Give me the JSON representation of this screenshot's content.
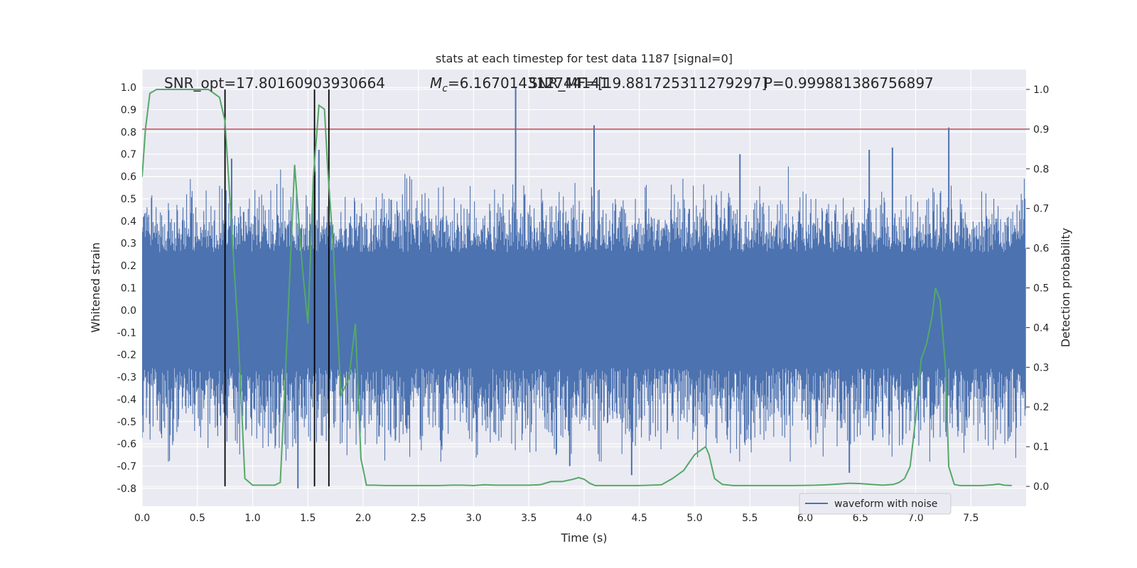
{
  "chart_data": {
    "type": "line",
    "title": "stats at each timestep for test data 1187 [signal=0]",
    "xlabel": "Time (s)",
    "ylabel_left": "Whitened strain",
    "ylabel_right": "Detection probability",
    "xlim": [
      0.0,
      8.0
    ],
    "ylim_left": [
      -0.88,
      1.08
    ],
    "ylim_right": [
      -0.05,
      1.05
    ],
    "xticks": [
      "0.0",
      "0.5",
      "1.0",
      "1.5",
      "2.0",
      "2.5",
      "3.0",
      "3.5",
      "4.0",
      "4.5",
      "5.0",
      "5.5",
      "6.0",
      "6.5",
      "7.0",
      "7.5"
    ],
    "yticks_left": [
      "-0.8",
      "-0.7",
      "-0.6",
      "-0.5",
      "-0.4",
      "-0.3",
      "-0.2",
      "-0.1",
      "0.0",
      "0.1",
      "0.2",
      "0.3",
      "0.4",
      "0.5",
      "0.6",
      "0.7",
      "0.8",
      "0.9",
      "1.0"
    ],
    "yticks_right": [
      "0.0",
      "0.1",
      "0.2",
      "0.3",
      "0.4",
      "0.5",
      "0.6",
      "0.7",
      "0.8",
      "0.9",
      "1.0"
    ],
    "grid": true,
    "legend": {
      "placement": "lower-right",
      "entries": [
        "waveform with noise"
      ]
    },
    "annotations": {
      "snr_opt": "SNR_opt=17.80160903930664",
      "mc_symbol": "M",
      "mc_sub": "c",
      "mc_value": "=6.167014312744141",
      "snr_mf": "SNR_MF=[19.881725311279297]",
      "p_value": "P=0.999881386756897"
    },
    "series": [
      {
        "name": "waveform with noise",
        "axis": "left",
        "color": "#4c72b0",
        "description_spikes": [
          {
            "x": 3.38,
            "y": 1.0
          },
          {
            "x": 4.09,
            "y": 0.83
          },
          {
            "x": 7.3,
            "y": 0.82
          },
          {
            "x": 0.81,
            "y": 0.68
          },
          {
            "x": 1.6,
            "y": 0.72
          },
          {
            "x": 5.41,
            "y": 0.7
          },
          {
            "x": 6.58,
            "y": 0.72
          },
          {
            "x": 6.79,
            "y": 0.73
          },
          {
            "x": 1.41,
            "y": -0.8
          },
          {
            "x": 4.43,
            "y": -0.74
          },
          {
            "x": 3.87,
            "y": -0.7
          },
          {
            "x": 6.4,
            "y": -0.73
          }
        ]
      },
      {
        "name": "",
        "axis": "right",
        "color": "#55a868",
        "x": [
          0.0,
          0.03,
          0.07,
          0.13,
          0.2,
          0.3,
          0.4,
          0.5,
          0.6,
          0.65,
          0.7,
          0.75,
          0.8,
          0.87,
          0.93,
          1.0,
          1.1,
          1.2,
          1.25,
          1.3,
          1.38,
          1.45,
          1.5,
          1.55,
          1.6,
          1.65,
          1.68,
          1.73,
          1.8,
          1.87,
          1.93,
          1.98,
          2.03,
          2.1,
          2.2,
          2.3,
          2.4,
          2.5,
          2.6,
          2.7,
          2.8,
          2.9,
          3.0,
          3.1,
          3.2,
          3.3,
          3.4,
          3.5,
          3.6,
          3.7,
          3.8,
          3.9,
          3.95,
          4.0,
          4.05,
          4.1,
          4.2,
          4.3,
          4.4,
          4.5,
          4.6,
          4.7,
          4.8,
          4.85,
          4.9,
          4.95,
          5.0,
          5.05,
          5.1,
          5.13,
          5.18,
          5.25,
          5.35,
          5.5,
          5.7,
          5.9,
          6.1,
          6.2,
          6.3,
          6.4,
          6.5,
          6.6,
          6.7,
          6.8,
          6.85,
          6.9,
          6.95,
          7.0,
          7.05,
          7.1,
          7.15,
          7.18,
          7.22,
          7.27,
          7.3,
          7.35,
          7.4,
          7.5,
          7.6,
          7.7,
          7.75,
          7.8,
          7.87
        ],
        "y": [
          0.78,
          0.9,
          0.99,
          1.0,
          1.0,
          1.0,
          1.0,
          1.0,
          1.0,
          0.99,
          0.98,
          0.92,
          0.7,
          0.38,
          0.02,
          0.003,
          0.003,
          0.003,
          0.01,
          0.3,
          0.81,
          0.55,
          0.41,
          0.78,
          0.96,
          0.95,
          0.8,
          0.6,
          0.23,
          0.27,
          0.41,
          0.07,
          0.003,
          0.003,
          0.002,
          0.002,
          0.002,
          0.002,
          0.002,
          0.002,
          0.003,
          0.003,
          0.002,
          0.004,
          0.003,
          0.003,
          0.003,
          0.003,
          0.004,
          0.012,
          0.012,
          0.018,
          0.022,
          0.018,
          0.008,
          0.002,
          0.002,
          0.002,
          0.002,
          0.002,
          0.003,
          0.004,
          0.02,
          0.03,
          0.04,
          0.06,
          0.08,
          0.09,
          0.1,
          0.08,
          0.02,
          0.005,
          0.002,
          0.002,
          0.002,
          0.002,
          0.003,
          0.004,
          0.006,
          0.008,
          0.007,
          0.005,
          0.003,
          0.005,
          0.01,
          0.02,
          0.05,
          0.17,
          0.32,
          0.36,
          0.43,
          0.5,
          0.47,
          0.3,
          0.05,
          0.005,
          0.002,
          0.002,
          0.002,
          0.004,
          0.006,
          0.003,
          0.002
        ]
      }
    ],
    "reference_lines": {
      "horizontal_right_axis": {
        "y": 0.9,
        "color": "#c44e52"
      },
      "vertical_x": [
        0.75,
        1.56,
        1.69
      ],
      "vertical_color": "#000000"
    }
  }
}
